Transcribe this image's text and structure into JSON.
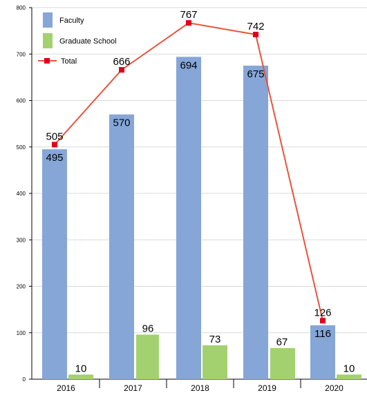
{
  "chart_data": {
    "type": "bar",
    "categories": [
      "2016",
      "2017",
      "2018",
      "2019",
      "2020"
    ],
    "series": [
      {
        "name": "Faculty",
        "type": "bar",
        "values": [
          495,
          570,
          694,
          675,
          116
        ],
        "color": "#85a6d7"
      },
      {
        "name": "Graduate School",
        "type": "bar",
        "values": [
          10,
          96,
          73,
          67,
          10
        ],
        "color": "#a4d16f"
      },
      {
        "name": "Total",
        "type": "line",
        "values": [
          505,
          666,
          767,
          742,
          126
        ],
        "color": "#e8533c",
        "marker_color": "#e0001b"
      }
    ],
    "y_ticks": [
      0,
      100,
      200,
      300,
      400,
      500,
      600,
      700,
      800
    ],
    "ylim": [
      0,
      800
    ],
    "grid": true,
    "legend_position": "top-left",
    "title": "",
    "xlabel": "",
    "ylabel": ""
  }
}
